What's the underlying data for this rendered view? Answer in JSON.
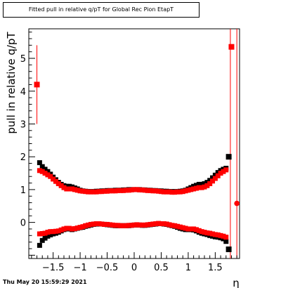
{
  "title": "Fitted pull in relative q/pT for Global Rec Pion EtapT",
  "timestamp": "Thu May 20 15:59:29 2021",
  "chart_data": {
    "type": "scatter",
    "title": "Fitted pull in relative q/pT for Global Rec Pion EtapT",
    "xlabel": "η",
    "ylabel": "pull in relative q/pT",
    "xlim": [
      -1.95,
      1.95
    ],
    "ylim": [
      -1.1,
      5.9
    ],
    "x_ticks": [
      -1.5,
      -1,
      -0.5,
      0,
      0.5,
      1,
      1.5
    ],
    "x_tick_labels": [
      "−1.5",
      "−1",
      "−0.5",
      "0",
      "0.5",
      "1",
      "1.5"
    ],
    "y_ticks": [
      0,
      1,
      2,
      3,
      4,
      5
    ],
    "y_tick_labels": [
      "0",
      "1",
      "2",
      "3",
      "4",
      "5"
    ],
    "grid": false,
    "series": [
      {
        "color": "#000000",
        "x": [
          -1.75,
          -1.7,
          -1.65,
          -1.6,
          -1.55,
          -1.5,
          -1.45,
          -1.4,
          -1.35,
          -1.3,
          -1.25,
          -1.2,
          -1.15,
          -1.1,
          -1.05,
          -1.0,
          -0.95,
          -0.9,
          -0.85,
          -0.8,
          -0.75,
          -0.7,
          -0.65,
          -0.6,
          -0.55,
          -0.5,
          -0.45,
          -0.4,
          -0.35,
          -0.3,
          -0.25,
          -0.2,
          -0.15,
          -0.1,
          -0.05,
          0.0,
          0.05,
          0.1,
          0.15,
          0.2,
          0.25,
          0.3,
          0.35,
          0.4,
          0.45,
          0.5,
          0.55,
          0.6,
          0.65,
          0.7,
          0.75,
          0.8,
          0.85,
          0.9,
          0.95,
          1.0,
          1.05,
          1.1,
          1.15,
          1.2,
          1.25,
          1.3,
          1.35,
          1.4,
          1.45,
          1.5,
          1.55,
          1.6,
          1.65,
          1.7
        ],
        "mean_upper": [
          1.82,
          1.7,
          1.62,
          1.55,
          1.47,
          1.38,
          1.3,
          1.22,
          1.16,
          1.12,
          1.1,
          1.1,
          1.08,
          1.05,
          1.02,
          0.98,
          0.96,
          0.95,
          0.94,
          0.94,
          0.94,
          0.95,
          0.95,
          0.96,
          0.96,
          0.97,
          0.97,
          0.97,
          0.98,
          0.98,
          0.98,
          0.99,
          0.99,
          1.0,
          1.0,
          1.0,
          1.0,
          1.0,
          0.99,
          0.99,
          0.98,
          0.98,
          0.97,
          0.97,
          0.96,
          0.96,
          0.95,
          0.95,
          0.94,
          0.94,
          0.94,
          0.94,
          0.95,
          0.96,
          0.98,
          1.02,
          1.06,
          1.1,
          1.13,
          1.16,
          1.16,
          1.18,
          1.22,
          1.28,
          1.36,
          1.44,
          1.52,
          1.58,
          1.62,
          1.65
        ],
        "mean_lower": [
          -0.7,
          -0.55,
          -0.48,
          -0.42,
          -0.38,
          -0.35,
          -0.33,
          -0.3,
          -0.26,
          -0.22,
          -0.2,
          -0.2,
          -0.22,
          -0.2,
          -0.18,
          -0.16,
          -0.15,
          -0.12,
          -0.1,
          -0.08,
          -0.06,
          -0.05,
          -0.05,
          -0.05,
          -0.06,
          -0.07,
          -0.08,
          -0.09,
          -0.1,
          -0.1,
          -0.1,
          -0.1,
          -0.1,
          -0.1,
          -0.09,
          -0.08,
          -0.08,
          -0.08,
          -0.09,
          -0.09,
          -0.08,
          -0.07,
          -0.06,
          -0.05,
          -0.04,
          -0.04,
          -0.05,
          -0.06,
          -0.08,
          -0.1,
          -0.12,
          -0.15,
          -0.18,
          -0.2,
          -0.22,
          -0.22,
          -0.22,
          -0.23,
          -0.26,
          -0.3,
          -0.33,
          -0.35,
          -0.37,
          -0.4,
          -0.42,
          -0.44,
          -0.45,
          -0.47,
          -0.5,
          -0.58
        ],
        "outliers": [
          {
            "x": 1.75,
            "y": 2.0
          },
          {
            "x": 1.75,
            "y": -0.82
          }
        ]
      },
      {
        "color": "#ff0000",
        "x": [
          -1.75,
          -1.7,
          -1.65,
          -1.6,
          -1.55,
          -1.5,
          -1.45,
          -1.4,
          -1.35,
          -1.3,
          -1.25,
          -1.2,
          -1.15,
          -1.1,
          -1.05,
          -1.0,
          -0.95,
          -0.9,
          -0.85,
          -0.8,
          -0.75,
          -0.7,
          -0.65,
          -0.6,
          -0.55,
          -0.5,
          -0.45,
          -0.4,
          -0.35,
          -0.3,
          -0.25,
          -0.2,
          -0.15,
          -0.1,
          -0.05,
          0.0,
          0.05,
          0.1,
          0.15,
          0.2,
          0.25,
          0.3,
          0.35,
          0.4,
          0.45,
          0.5,
          0.55,
          0.6,
          0.65,
          0.7,
          0.75,
          0.8,
          0.85,
          0.9,
          0.95,
          1.0,
          1.05,
          1.1,
          1.15,
          1.2,
          1.25,
          1.3,
          1.35,
          1.4,
          1.45,
          1.5,
          1.55,
          1.6,
          1.65,
          1.7
        ],
        "mean_upper": [
          1.58,
          1.55,
          1.5,
          1.45,
          1.4,
          1.32,
          1.25,
          1.18,
          1.12,
          1.06,
          1.02,
          1.02,
          1.02,
          1.0,
          0.98,
          0.96,
          0.95,
          0.94,
          0.93,
          0.93,
          0.93,
          0.93,
          0.94,
          0.94,
          0.95,
          0.95,
          0.96,
          0.96,
          0.96,
          0.97,
          0.97,
          0.97,
          0.98,
          0.98,
          0.99,
          1.0,
          1.0,
          0.99,
          0.99,
          0.98,
          0.97,
          0.97,
          0.96,
          0.96,
          0.95,
          0.94,
          0.93,
          0.93,
          0.93,
          0.92,
          0.92,
          0.93,
          0.93,
          0.94,
          0.96,
          0.98,
          1.0,
          1.02,
          1.04,
          1.06,
          1.06,
          1.08,
          1.12,
          1.18,
          1.26,
          1.34,
          1.42,
          1.5,
          1.55,
          1.6
        ],
        "mean_lower": [
          -0.35,
          -0.34,
          -0.33,
          -0.3,
          -0.28,
          -0.28,
          -0.27,
          -0.26,
          -0.23,
          -0.2,
          -0.18,
          -0.18,
          -0.2,
          -0.19,
          -0.17,
          -0.15,
          -0.13,
          -0.1,
          -0.08,
          -0.06,
          -0.05,
          -0.04,
          -0.04,
          -0.05,
          -0.06,
          -0.06,
          -0.07,
          -0.08,
          -0.09,
          -0.09,
          -0.1,
          -0.1,
          -0.1,
          -0.09,
          -0.09,
          -0.08,
          -0.07,
          -0.08,
          -0.08,
          -0.08,
          -0.07,
          -0.06,
          -0.05,
          -0.04,
          -0.03,
          -0.04,
          -0.04,
          -0.05,
          -0.07,
          -0.09,
          -0.1,
          -0.12,
          -0.14,
          -0.16,
          -0.18,
          -0.2,
          -0.2,
          -0.2,
          -0.22,
          -0.25,
          -0.28,
          -0.3,
          -0.32,
          -0.33,
          -0.35,
          -0.37,
          -0.38,
          -0.4,
          -0.42,
          -0.45
        ],
        "outliers": [
          {
            "x": -1.8,
            "y": 4.2
          },
          {
            "x": 1.8,
            "y": 5.35
          },
          {
            "x": 1.9,
            "y": 0.58
          }
        ],
        "error_bars": [
          {
            "x": -1.8,
            "low": 3.0,
            "high": 5.4
          },
          {
            "x": 1.78,
            "low": -1.1,
            "high": 5.9
          },
          {
            "x": 1.9,
            "low": -1.1,
            "high": 5.9
          }
        ]
      }
    ]
  }
}
